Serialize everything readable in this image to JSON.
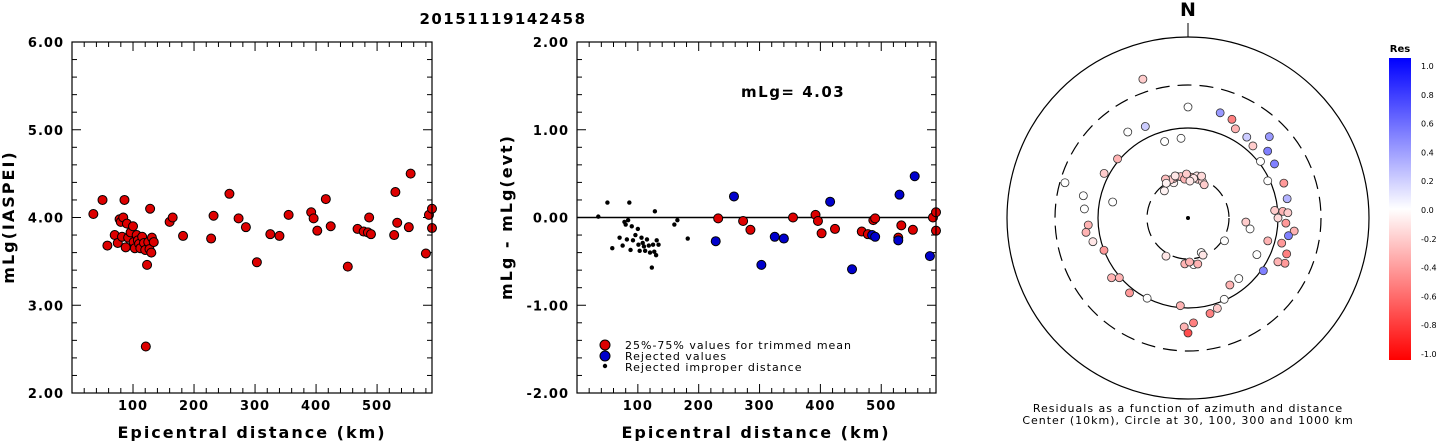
{
  "figure_title": "20151119142458",
  "chart_data": [
    {
      "id": "left",
      "type": "scatter",
      "xlabel": "Epicentral distance (km)",
      "ylabel": "mLg(IASPEI)",
      "xlim": [
        0,
        590
      ],
      "ylim": [
        2.0,
        6.0
      ],
      "xticks": [
        100,
        200,
        300,
        400,
        500
      ],
      "yticks": [
        "2.00",
        "3.00",
        "4.00",
        "5.00",
        "6.00"
      ],
      "series": [
        {
          "marker_color": "#dd0000",
          "points": [
            [
              35,
              4.04
            ],
            [
              50,
              4.2
            ],
            [
              58,
              3.68
            ],
            [
              70,
              3.8
            ],
            [
              75,
              3.71
            ],
            [
              78,
              3.98
            ],
            [
              80,
              3.95
            ],
            [
              82,
              3.78
            ],
            [
              84,
              4.0
            ],
            [
              86,
              4.2
            ],
            [
              88,
              3.66
            ],
            [
              90,
              3.93
            ],
            [
              92,
              3.77
            ],
            [
              96,
              3.83
            ],
            [
              100,
              3.9
            ],
            [
              101,
              3.72
            ],
            [
              103,
              3.65
            ],
            [
              106,
              3.8
            ],
            [
              108,
              3.74
            ],
            [
              110,
              3.7
            ],
            [
              112,
              3.65
            ],
            [
              115,
              3.78
            ],
            [
              118,
              3.71
            ],
            [
              120,
              3.63
            ],
            [
              121,
              2.53
            ],
            [
              123,
              3.46
            ],
            [
              125,
              3.72
            ],
            [
              127,
              3.64
            ],
            [
              128,
              4.1
            ],
            [
              130,
              3.6
            ],
            [
              131,
              3.77
            ],
            [
              134,
              3.72
            ],
            [
              160,
              3.95
            ],
            [
              165,
              4.0
            ],
            [
              182,
              3.79
            ],
            [
              228,
              3.76
            ],
            [
              232,
              4.02
            ],
            [
              258,
              4.27
            ],
            [
              273,
              3.99
            ],
            [
              285,
              3.89
            ],
            [
              303,
              3.49
            ],
            [
              325,
              3.81
            ],
            [
              340,
              3.79
            ],
            [
              355,
              4.03
            ],
            [
              392,
              4.06
            ],
            [
              396,
              3.99
            ],
            [
              402,
              3.85
            ],
            [
              416,
              4.21
            ],
            [
              424,
              3.9
            ],
            [
              452,
              3.44
            ],
            [
              468,
              3.87
            ],
            [
              478,
              3.84
            ],
            [
              485,
              3.83
            ],
            [
              487,
              4.0
            ],
            [
              490,
              3.81
            ],
            [
              528,
              3.8
            ],
            [
              530,
              4.29
            ],
            [
              533,
              3.94
            ],
            [
              552,
              3.89
            ],
            [
              555,
              4.5
            ],
            [
              580,
              3.59
            ],
            [
              585,
              4.03
            ],
            [
              590,
              3.88
            ],
            [
              593,
              4.1
            ]
          ]
        }
      ]
    },
    {
      "id": "middle",
      "type": "scatter",
      "xlabel": "Epicentral distance (km)",
      "ylabel": "mLg - mLg(evt)",
      "xlim": [
        0,
        590
      ],
      "ylim": [
        -2.0,
        2.0
      ],
      "xticks": [
        100,
        200,
        300,
        400,
        500
      ],
      "yticks": [
        "-2.00",
        "-1.00",
        "0.00",
        "1.00",
        "2.00"
      ],
      "annotation": "mLg= 4.03",
      "reference_line_y": 0.0,
      "legend": [
        {
          "label": "25%-75% values for trimmed mean",
          "color": "#dd0000",
          "marker": "circle"
        },
        {
          "label": "Rejected values",
          "color": "#0000cc",
          "marker": "circle"
        },
        {
          "label": "Rejected improper distance",
          "color": "#000000",
          "marker": "dot"
        }
      ],
      "series": [
        {
          "name": "25%-75% values for trimmed mean",
          "color": "#dd0000",
          "points": [
            [
              232,
              -0.01
            ],
            [
              273,
              -0.04
            ],
            [
              285,
              -0.14
            ],
            [
              355,
              -0.0
            ],
            [
              392,
              0.03
            ],
            [
              396,
              -0.04
            ],
            [
              402,
              -0.18
            ],
            [
              424,
              -0.13
            ],
            [
              468,
              -0.16
            ],
            [
              478,
              -0.19
            ],
            [
              487,
              -0.03
            ],
            [
              490,
              -0.01
            ],
            [
              528,
              -0.23
            ],
            [
              533,
              -0.09
            ],
            [
              552,
              -0.14
            ],
            [
              585,
              0.0
            ],
            [
              590,
              -0.15
            ],
            [
              593,
              0.06
            ]
          ]
        },
        {
          "name": "Rejected values",
          "color": "#0000cc",
          "points": [
            [
              228,
              -0.27
            ],
            [
              258,
              0.24
            ],
            [
              303,
              -0.54
            ],
            [
              325,
              -0.22
            ],
            [
              340,
              -0.24
            ],
            [
              416,
              0.18
            ],
            [
              452,
              -0.59
            ],
            [
              485,
              -0.2
            ],
            [
              490,
              -0.22
            ],
            [
              528,
              -0.26
            ],
            [
              530,
              0.26
            ],
            [
              555,
              0.47
            ],
            [
              580,
              -0.44
            ]
          ]
        },
        {
          "name": "Rejected improper distance",
          "color": "#000000",
          "points": [
            [
              35,
              0.01
            ],
            [
              50,
              0.17
            ],
            [
              58,
              -0.35
            ],
            [
              70,
              -0.23
            ],
            [
              75,
              -0.32
            ],
            [
              78,
              -0.05
            ],
            [
              80,
              -0.08
            ],
            [
              82,
              -0.25
            ],
            [
              84,
              -0.03
            ],
            [
              86,
              0.17
            ],
            [
              88,
              -0.37
            ],
            [
              90,
              -0.1
            ],
            [
              92,
              -0.26
            ],
            [
              96,
              -0.2
            ],
            [
              100,
              -0.13
            ],
            [
              101,
              -0.31
            ],
            [
              103,
              -0.38
            ],
            [
              106,
              -0.23
            ],
            [
              108,
              -0.29
            ],
            [
              110,
              -0.33
            ],
            [
              112,
              -0.38
            ],
            [
              115,
              -0.25
            ],
            [
              118,
              -0.32
            ],
            [
              120,
              -0.4
            ],
            [
              123,
              -0.57
            ],
            [
              125,
              -0.31
            ],
            [
              127,
              -0.39
            ],
            [
              128,
              0.07
            ],
            [
              130,
              -0.43
            ],
            [
              131,
              -0.26
            ],
            [
              134,
              -0.31
            ],
            [
              160,
              -0.08
            ],
            [
              165,
              -0.03
            ],
            [
              182,
              -0.24
            ]
          ]
        }
      ]
    },
    {
      "id": "polar",
      "type": "scatter",
      "north_label": "N",
      "caption_line1": "Residuals as a function of azimuth and distance",
      "caption_line2": "Center (10km), Circle at 30, 100, 300 and 1000 km",
      "rings_km": [
        {
          "km": 30,
          "style": "dashed"
        },
        {
          "km": 100,
          "style": "solid"
        },
        {
          "km": 300,
          "style": "dashed"
        },
        {
          "km": 1000,
          "style": "solid"
        }
      ],
      "colorbar": {
        "title": "Res",
        "labels": [
          "1.0",
          "0.8",
          "0.6",
          "0.4",
          "0.2",
          "0.0",
          "-0.2",
          "-0.4",
          "-0.6",
          "-0.8",
          "-1.0"
        ]
      },
      "points": [
        [
          319,
          36,
          -0.05
        ],
        [
          338,
          38,
          -0.05
        ],
        [
          340,
          42,
          -0.25
        ],
        [
          345,
          43,
          -0.2
        ],
        [
          350,
          42,
          -0.25
        ],
        [
          0,
          42,
          -0.35
        ],
        [
          6,
          41,
          -0.3
        ],
        [
          14,
          40,
          -0.2
        ],
        [
          22,
          39,
          -0.15
        ],
        [
          26,
          37,
          -0.2
        ],
        [
          12,
          43,
          -0.1
        ],
        [
          8,
          40,
          -0.1
        ],
        [
          355,
          39,
          -0.3
        ],
        [
          335,
          42,
          -0.2
        ],
        [
          330,
          45,
          -0.25
        ],
        [
          328,
          41,
          -0.05
        ],
        [
          343,
          44,
          -0.1
        ],
        [
          358,
          44,
          -0.2
        ],
        [
          3,
          37,
          -0.1
        ],
        [
          18,
          44,
          -0.15
        ],
        [
          335,
          101,
          0.2
        ],
        [
          343,
          80,
          0.0
        ],
        [
          355,
          80,
          0.0
        ],
        [
          0,
          111,
          0.0
        ],
        [
          17,
          110,
          0.4
        ],
        [
          24,
          108,
          -0.5
        ],
        [
          28,
          101,
          -0.3
        ],
        [
          36,
          100,
          0.2
        ],
        [
          42,
          97,
          -0.2
        ],
        [
          45,
          115,
          0.4
        ],
        [
          50,
          104,
          0.5
        ],
        [
          52,
          92,
          0.0
        ],
        [
          58,
          102,
          0.5
        ],
        [
          65,
          88,
          0.0
        ],
        [
          70,
          102,
          -0.4
        ],
        [
          79,
          101,
          0.3
        ],
        [
          85,
          87,
          -0.2
        ],
        [
          86,
          95,
          -0.3
        ],
        [
          87,
          100,
          -0.2
        ],
        [
          90,
          90,
          -0.15
        ],
        [
          93,
          98,
          -0.4
        ],
        [
          97,
          107,
          -0.3
        ],
        [
          100,
          102,
          0.5
        ],
        [
          105,
          97,
          -0.4
        ],
        [
          110,
          105,
          -0.5
        ],
        [
          115,
          107,
          -0.4
        ],
        [
          125,
          92,
          0.5
        ],
        [
          106,
          83,
          -0.3
        ],
        [
          116,
          100,
          -0.3
        ],
        [
          118,
          78,
          0.0
        ],
        [
          100,
          63,
          0.0
        ],
        [
          94,
          58,
          -0.2
        ],
        [
          122,
          43,
          0.0
        ],
        [
          159,
          37,
          0.0
        ],
        [
          173,
          47,
          0.0
        ],
        [
          168,
          47,
          -0.3
        ],
        [
          184,
          46,
          -0.3
        ],
        [
          178,
          44,
          -0.3
        ],
        [
          210,
          44,
          -0.1
        ],
        [
          282,
          77,
          0.0
        ],
        [
          256,
          98,
          -0.1
        ],
        [
          249,
          90,
          -0.4
        ],
        [
          232,
          97,
          -0.3
        ],
        [
          229,
          91,
          -0.3
        ],
        [
          218,
          95,
          -0.4
        ],
        [
          207,
          90,
          0.0
        ],
        [
          185,
          88,
          -0.3
        ],
        [
          182,
          109,
          -0.3
        ],
        [
          180,
          115,
          -0.7
        ],
        [
          177,
          105,
          -0.5
        ],
        [
          167,
          98,
          -0.5
        ],
        [
          162,
          95,
          -0.2
        ],
        [
          156,
          89,
          0.0
        ],
        [
          148,
          79,
          -0.3
        ],
        [
          140,
          79,
          0.0
        ],
        [
          282,
          107,
          0.0
        ],
        [
          310,
          92,
          -0.3
        ],
        [
          325,
          105,
          0.0
        ],
        [
          298,
          95,
          -0.2
        ],
        [
          275,
          104,
          0.0
        ],
        [
          266,
          100,
          -0.3
        ],
        [
          262,
          103,
          -0.3
        ],
        [
          286,
          128,
          0.0
        ],
        [
          342,
          146,
          -0.2
        ],
        [
          158,
          40,
          -0.1
        ]
      ]
    }
  ]
}
